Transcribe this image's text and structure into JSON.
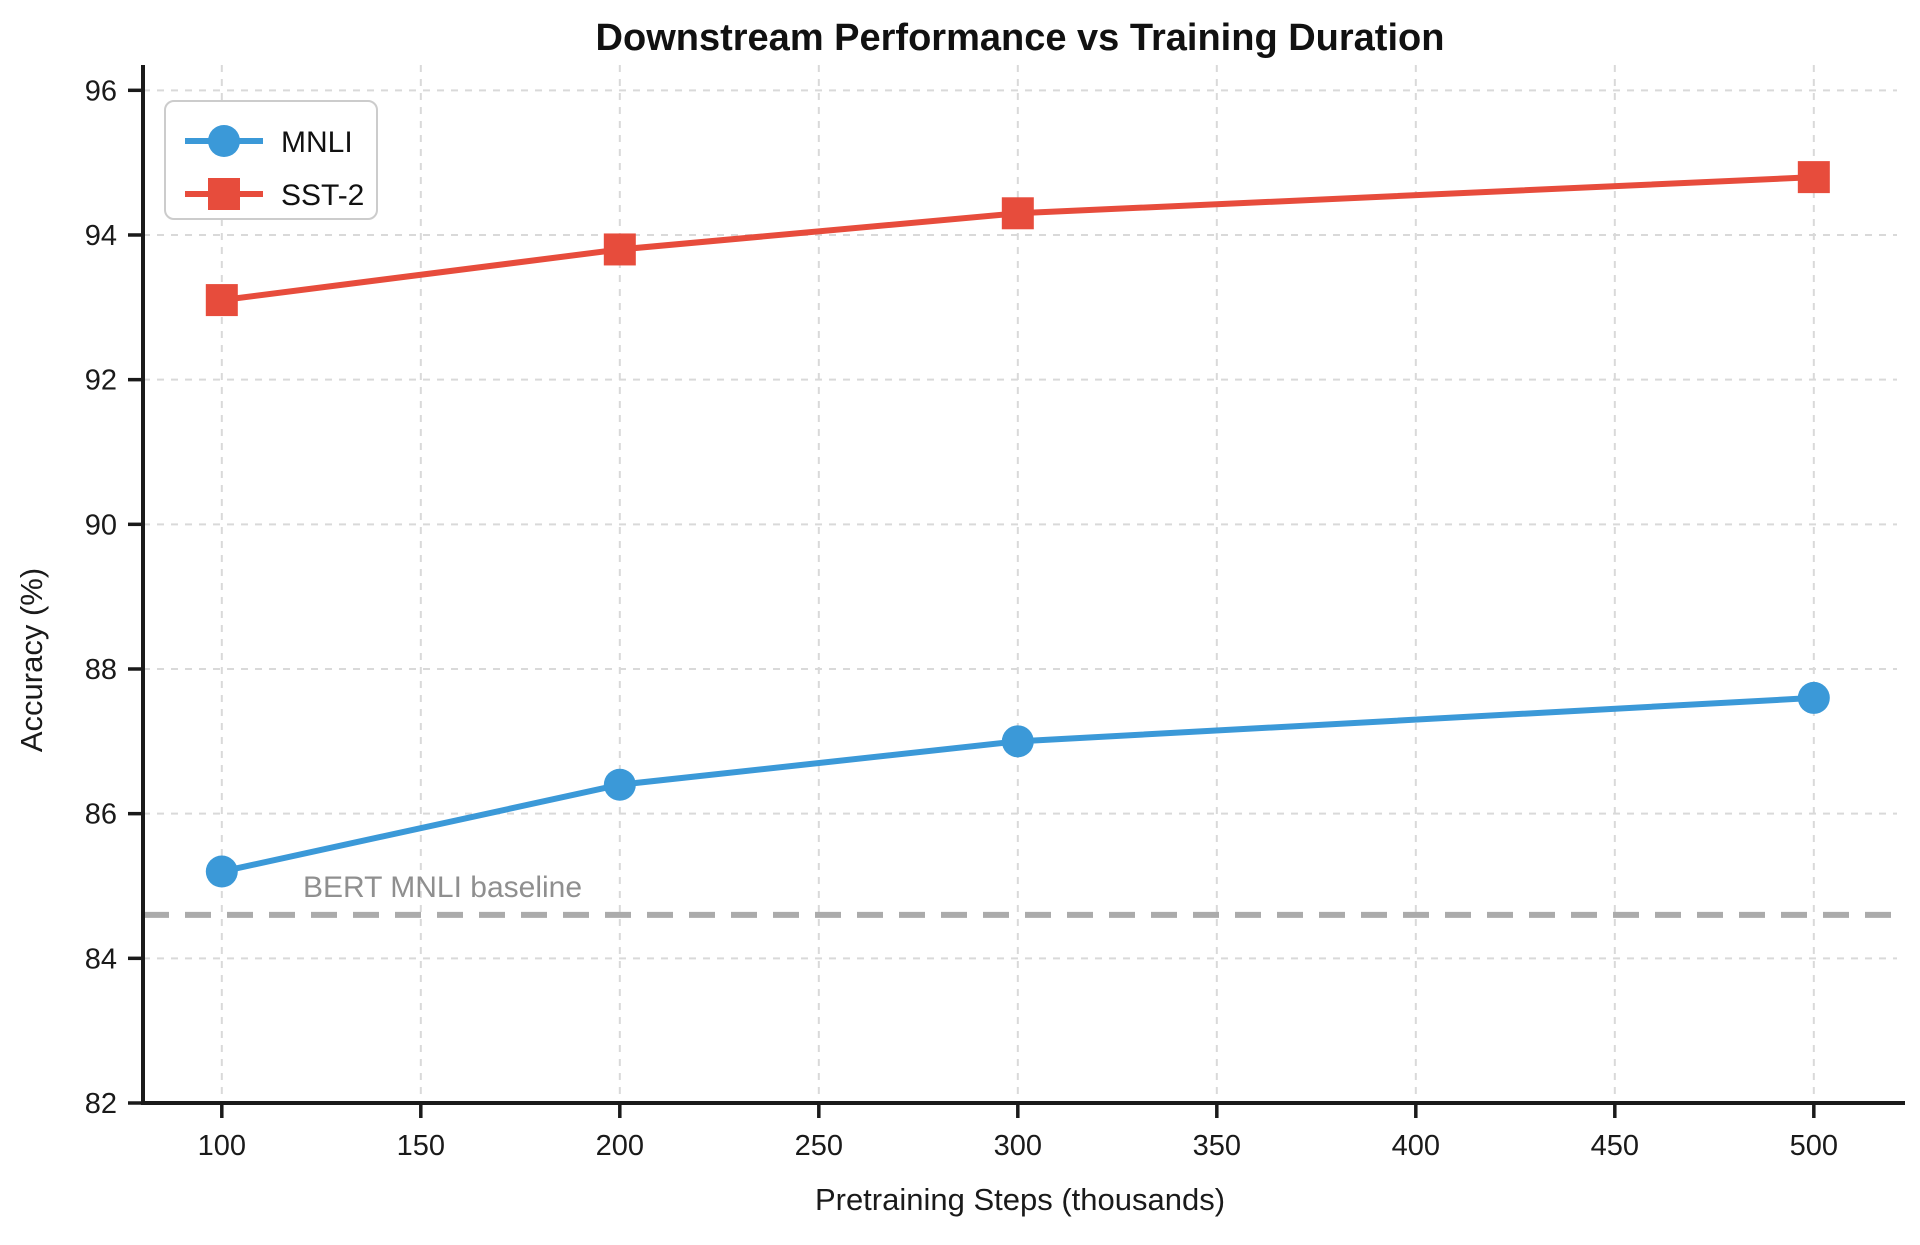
{
  "chart_data": {
    "type": "line",
    "title": "Downstream Performance vs Training Duration",
    "xlabel": "Pretraining Steps (thousands)",
    "ylabel": "Accuracy (%)",
    "x": [
      100,
      200,
      300,
      500
    ],
    "series": [
      {
        "name": "MNLI",
        "color": "#3b99d8",
        "marker": "circle",
        "values": [
          85.2,
          86.4,
          87.0,
          87.6
        ]
      },
      {
        "name": "SST-2",
        "color": "#e74c3c",
        "marker": "square",
        "values": [
          93.1,
          93.8,
          94.3,
          94.8
        ]
      }
    ],
    "baseline": {
      "label": "BERT MNLI baseline",
      "value": 84.6,
      "line_color": "#ababab",
      "label_color": "#8f8f8f"
    },
    "xticks": [
      100,
      150,
      200,
      250,
      300,
      350,
      400,
      450,
      500
    ],
    "yticks": [
      82,
      84,
      86,
      88,
      90,
      92,
      94,
      96
    ],
    "xlim": [
      80.2,
      520.9
    ],
    "ylim": [
      82,
      96.35
    ],
    "grid": true,
    "grid_color": "#d9d9d9",
    "spine_color": "#1a1a1a",
    "legend_position": "upper left",
    "background": "#ffffff"
  }
}
